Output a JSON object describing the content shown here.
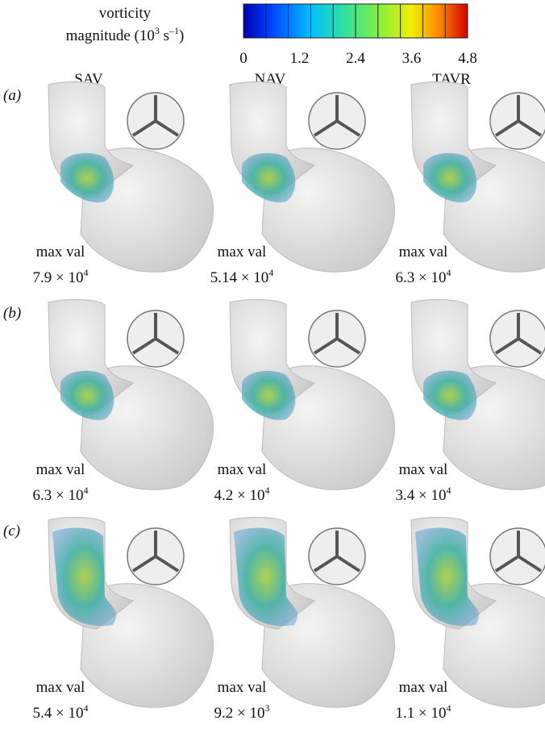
{
  "legend": {
    "title_line1": "vorticity",
    "title_line2": {
      "text": "magnitude (10",
      "sup1": "3",
      "mid": " s",
      "sup2": "–1",
      "end": ")"
    },
    "range": [
      0,
      4.8
    ],
    "ticks": [
      0,
      1.2,
      2.4,
      3.6,
      4.8
    ]
  },
  "columns": [
    "SAV",
    "NAV",
    "TAVR"
  ],
  "rows": [
    {
      "label": "(a)",
      "cells": [
        {
          "caption": "max val",
          "value": "7.9 × 10",
          "exponent": "4"
        },
        {
          "caption": "max val",
          "value": "5.14 × 10",
          "exponent": "4"
        },
        {
          "caption": "max val",
          "value": "6.3 × 10",
          "exponent": "4"
        }
      ]
    },
    {
      "label": "(b)",
      "cells": [
        {
          "caption": "max val",
          "value": "6.3 × 10",
          "exponent": "4"
        },
        {
          "caption": "max val",
          "value": "4.2 × 10",
          "exponent": "4"
        },
        {
          "caption": "max val",
          "value": "3.4 × 10",
          "exponent": "4"
        }
      ]
    },
    {
      "label": "(c)",
      "cells": [
        {
          "caption": "max val",
          "value": "5.4 × 10",
          "exponent": "4"
        },
        {
          "caption": "max val",
          "value": "9.2 × 10",
          "exponent": "3"
        },
        {
          "caption": "max val",
          "value": "1.1 × 10",
          "exponent": "4"
        }
      ]
    }
  ]
}
